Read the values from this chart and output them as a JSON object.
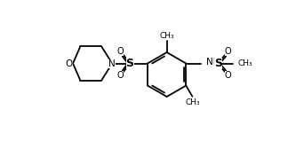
{
  "background_color": "#ffffff",
  "line_color": "#000000",
  "line_width": 1.3,
  "font_size": 7.5,
  "fig_width": 3.24,
  "fig_height": 1.68,
  "dpi": 100,
  "xlim": [
    0,
    10
  ],
  "ylim": [
    0,
    5.2
  ]
}
